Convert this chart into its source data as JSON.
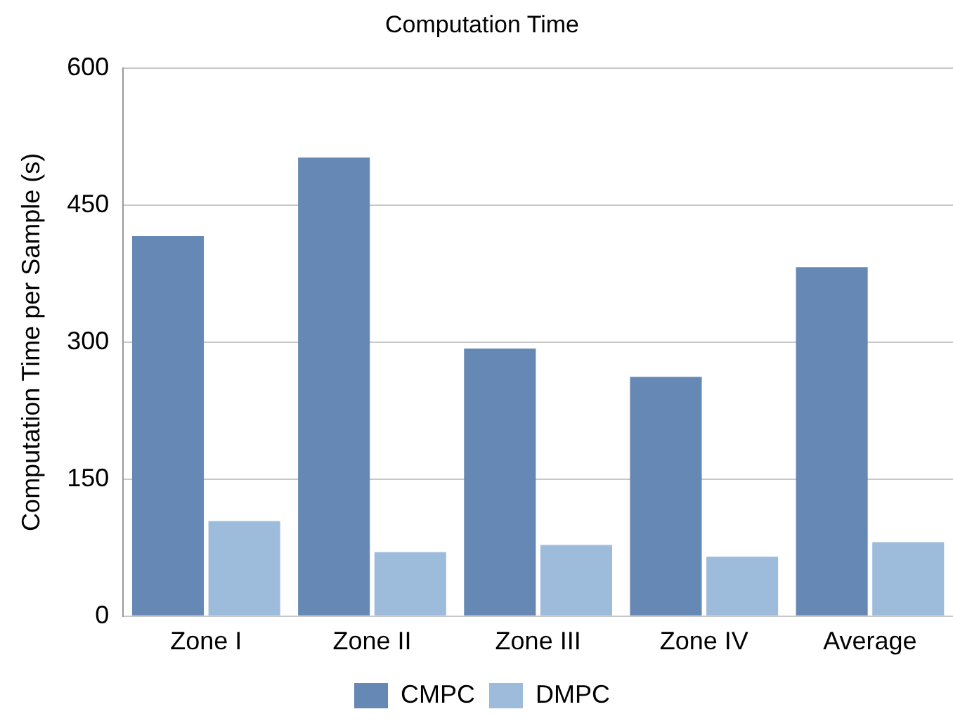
{
  "chart_data": {
    "type": "bar",
    "title": "Computation Time",
    "ylabel": "Computation Time per Sample (s)",
    "categories": [
      "Zone I",
      "Zone II",
      "Zone III",
      "Zone IV",
      "Average"
    ],
    "series": [
      {
        "name": "CMPC",
        "color": "#6688b5",
        "values": [
          416,
          502,
          293,
          262,
          382
        ]
      },
      {
        "name": "DMPC",
        "color": "#9dbcdb",
        "values": [
          104,
          70,
          78,
          65,
          81
        ]
      }
    ],
    "ylim": [
      0,
      600
    ],
    "yticks": [
      0,
      150,
      300,
      450,
      600
    ],
    "grid": "y",
    "legend": "bottom"
  }
}
